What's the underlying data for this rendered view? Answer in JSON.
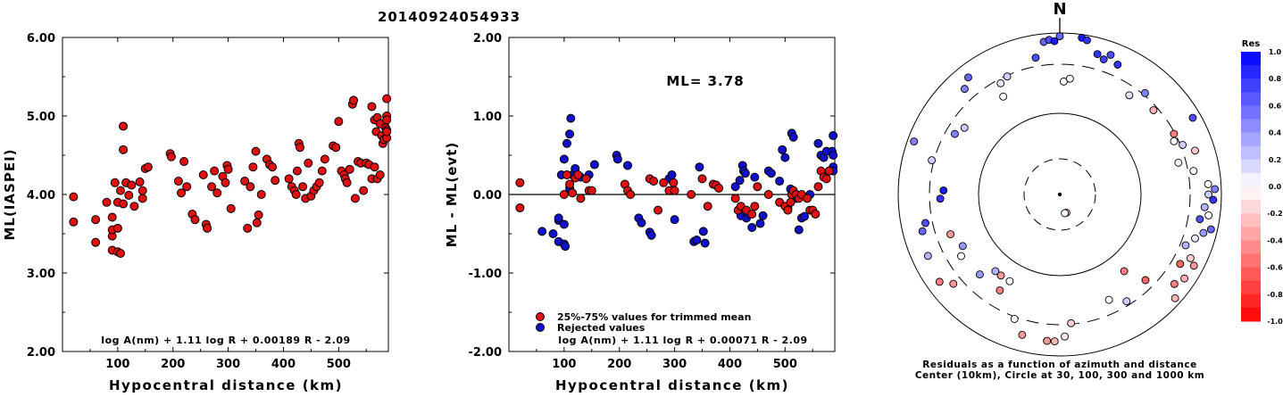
{
  "title": "20140924054933",
  "chart_data": [
    {
      "type": "scatter",
      "xlabel": "Hypocentral distance (km)",
      "ylabel": "ML(IASPEI)",
      "xlim": [
        0,
        590
      ],
      "ylim": [
        2.0,
        6.0
      ],
      "xticks": [
        "100",
        "200",
        "300",
        "400",
        "500"
      ],
      "yticks": [
        "2.00",
        "3.00",
        "4.00",
        "5.00",
        "6.00"
      ],
      "formula": "log A(nm) + 1.11 log R + 0.00189 R - 2.09",
      "color": "#dd1111",
      "points": [
        [
          20,
          3.97
        ],
        [
          20,
          3.65
        ],
        [
          60,
          3.68
        ],
        [
          60,
          3.39
        ],
        [
          80,
          3.9
        ],
        [
          90,
          3.47
        ],
        [
          90,
          3.55
        ],
        [
          90,
          3.29
        ],
        [
          90,
          3.71
        ],
        [
          95,
          4.15
        ],
        [
          100,
          3.9
        ],
        [
          100,
          3.57
        ],
        [
          100,
          3.27
        ],
        [
          105,
          3.25
        ],
        [
          105,
          4.05
        ],
        [
          110,
          3.88
        ],
        [
          110,
          4.57
        ],
        [
          110,
          4.87
        ],
        [
          115,
          4.15
        ],
        [
          120,
          3.99
        ],
        [
          125,
          4.12
        ],
        [
          130,
          3.85
        ],
        [
          140,
          4.16
        ],
        [
          145,
          3.95
        ],
        [
          145,
          4.05
        ],
        [
          150,
          4.33
        ],
        [
          155,
          4.35
        ],
        [
          195,
          4.52
        ],
        [
          197,
          4.48
        ],
        [
          210,
          4.17
        ],
        [
          215,
          4.02
        ],
        [
          220,
          4.42
        ],
        [
          225,
          4.1
        ],
        [
          235,
          3.75
        ],
        [
          240,
          3.68
        ],
        [
          255,
          4.25
        ],
        [
          260,
          3.62
        ],
        [
          262,
          3.57
        ],
        [
          270,
          4.1
        ],
        [
          275,
          4.3
        ],
        [
          280,
          4.02
        ],
        [
          290,
          4.23
        ],
        [
          295,
          4.15
        ],
        [
          298,
          4.37
        ],
        [
          300,
          4.32
        ],
        [
          305,
          3.82
        ],
        [
          330,
          4.17
        ],
        [
          335,
          3.57
        ],
        [
          340,
          4.1
        ],
        [
          345,
          4.35
        ],
        [
          350,
          4.55
        ],
        [
          352,
          3.64
        ],
        [
          355,
          3.74
        ],
        [
          360,
          4.0
        ],
        [
          370,
          4.45
        ],
        [
          375,
          4.38
        ],
        [
          380,
          4.35
        ],
        [
          385,
          4.18
        ],
        [
          410,
          4.2
        ],
        [
          415,
          4.1
        ],
        [
          420,
          4.05
        ],
        [
          423,
          4.0
        ],
        [
          425,
          4.3
        ],
        [
          428,
          4.65
        ],
        [
          430,
          4.6
        ],
        [
          435,
          4.1
        ],
        [
          440,
          3.95
        ],
        [
          445,
          4.4
        ],
        [
          450,
          3.98
        ],
        [
          455,
          4.05
        ],
        [
          460,
          4.1
        ],
        [
          465,
          4.15
        ],
        [
          470,
          4.3
        ],
        [
          475,
          4.45
        ],
        [
          490,
          4.62
        ],
        [
          495,
          4.6
        ],
        [
          500,
          4.93
        ],
        [
          505,
          4.3
        ],
        [
          510,
          4.25
        ],
        [
          512,
          4.2
        ],
        [
          515,
          4.15
        ],
        [
          520,
          4.32
        ],
        [
          525,
          5.15
        ],
        [
          527,
          5.2
        ],
        [
          530,
          3.95
        ],
        [
          535,
          4.42
        ],
        [
          540,
          4.4
        ],
        [
          545,
          4.05
        ],
        [
          550,
          4.4
        ],
        [
          555,
          4.38
        ],
        [
          560,
          4.2
        ],
        [
          565,
          4.35
        ],
        [
          570,
          4.2
        ],
        [
          575,
          4.25
        ],
        [
          560,
          5.12
        ],
        [
          565,
          4.95
        ],
        [
          568,
          4.8
        ],
        [
          570,
          4.98
        ],
        [
          575,
          4.9
        ],
        [
          578,
          4.75
        ],
        [
          580,
          4.65
        ],
        [
          582,
          4.7
        ],
        [
          585,
          4.85
        ],
        [
          587,
          5.0
        ],
        [
          590,
          4.82
        ],
        [
          592,
          4.72
        ],
        [
          595,
          5.22
        ],
        [
          598,
          4.95
        ],
        [
          600,
          4.8
        ]
      ]
    },
    {
      "type": "scatter",
      "xlabel": "Hypocentral distance (km)",
      "ylabel": "ML - ML(evt)",
      "xlim": [
        0,
        590
      ],
      "ylim": [
        -2.0,
        2.0
      ],
      "xticks": [
        "100",
        "200",
        "300",
        "400",
        "500"
      ],
      "yticks": [
        "-2.00",
        "-1.00",
        "0.00",
        "1.00",
        "2.00"
      ],
      "annotation": "ML= 3.78",
      "formula": "log A(nm) + 1.11 log R + 0.00071 R - 2.09",
      "legend": [
        {
          "label": "25%-75% values for trimmed mean",
          "color": "#dd1111"
        },
        {
          "label": "Rejected values",
          "color": "#1111cc"
        }
      ],
      "trimmed_points": [
        [
          20,
          0.15
        ],
        [
          20,
          -0.17
        ],
        [
          100,
          0.0
        ],
        [
          105,
          0.25
        ],
        [
          110,
          0.13
        ],
        [
          115,
          0.02
        ],
        [
          120,
          0.21
        ],
        [
          125,
          0.25
        ],
        [
          130,
          -0.05
        ],
        [
          140,
          0.2
        ],
        [
          145,
          0.05
        ],
        [
          150,
          0.05
        ],
        [
          210,
          0.13
        ],
        [
          215,
          0.05
        ],
        [
          220,
          0.0
        ],
        [
          255,
          0.2
        ],
        [
          262,
          0.17
        ],
        [
          270,
          -0.2
        ],
        [
          280,
          0.15
        ],
        [
          290,
          0.05
        ],
        [
          298,
          0.15
        ],
        [
          300,
          0.05
        ],
        [
          330,
          0.0
        ],
        [
          350,
          0.2
        ],
        [
          360,
          -0.15
        ],
        [
          370,
          0.13
        ],
        [
          375,
          0.12
        ],
        [
          380,
          0.08
        ],
        [
          410,
          -0.05
        ],
        [
          415,
          -0.2
        ],
        [
          420,
          -0.15
        ],
        [
          430,
          -0.2
        ],
        [
          440,
          -0.25
        ],
        [
          445,
          -0.15
        ],
        [
          450,
          0.1
        ],
        [
          470,
          0.0
        ],
        [
          490,
          -0.1
        ],
        [
          500,
          -0.15
        ],
        [
          505,
          -0.2
        ],
        [
          510,
          -0.1
        ],
        [
          512,
          0.0
        ],
        [
          515,
          0.05
        ],
        [
          520,
          0.0
        ],
        [
          525,
          -0.05
        ],
        [
          530,
          0.0
        ],
        [
          540,
          -0.05
        ],
        [
          545,
          -0.2
        ],
        [
          550,
          -0.2
        ],
        [
          555,
          -0.25
        ],
        [
          560,
          0.1
        ],
        [
          565,
          0.3
        ],
        [
          570,
          0.22
        ],
        [
          575,
          0.2
        ],
        [
          580,
          0.3
        ]
      ],
      "rejected_points": [
        [
          60,
          -0.47
        ],
        [
          80,
          -0.5
        ],
        [
          90,
          -0.33
        ],
        [
          90,
          -0.3
        ],
        [
          90,
          -0.6
        ],
        [
          95,
          0.25
        ],
        [
          100,
          -0.63
        ],
        [
          100,
          -0.38
        ],
        [
          100,
          0.45
        ],
        [
          102,
          -0.66
        ],
        [
          105,
          0.65
        ],
        [
          110,
          0.08
        ],
        [
          110,
          0.77
        ],
        [
          112,
          0.97
        ],
        [
          115,
          0.25
        ],
        [
          120,
          0.33
        ],
        [
          130,
          0.22
        ],
        [
          145,
          0.25
        ],
        [
          155,
          0.38
        ],
        [
          195,
          0.5
        ],
        [
          197,
          0.45
        ],
        [
          215,
          0.37
        ],
        [
          235,
          -0.3
        ],
        [
          240,
          -0.36
        ],
        [
          255,
          -0.48
        ],
        [
          258,
          -0.52
        ],
        [
          290,
          0.2
        ],
        [
          295,
          0.25
        ],
        [
          300,
          -0.32
        ],
        [
          335,
          -0.6
        ],
        [
          340,
          -0.58
        ],
        [
          345,
          0.35
        ],
        [
          352,
          -0.47
        ],
        [
          355,
          -0.62
        ],
        [
          410,
          0.1
        ],
        [
          418,
          0.18
        ],
        [
          420,
          -0.27
        ],
        [
          423,
          0.37
        ],
        [
          425,
          0.3
        ],
        [
          428,
          0.27
        ],
        [
          430,
          -0.3
        ],
        [
          435,
          -0.25
        ],
        [
          440,
          -0.42
        ],
        [
          445,
          0.22
        ],
        [
          455,
          -0.37
        ],
        [
          460,
          -0.27
        ],
        [
          470,
          0.3
        ],
        [
          475,
          0.27
        ],
        [
          490,
          0.17
        ],
        [
          495,
          0.57
        ],
        [
          500,
          0.47
        ],
        [
          505,
          -0.18
        ],
        [
          510,
          0.07
        ],
        [
          512,
          0.78
        ],
        [
          515,
          0.73
        ],
        [
          520,
          -0.05
        ],
        [
          525,
          -0.45
        ],
        [
          530,
          -0.3
        ],
        [
          535,
          -0.28
        ],
        [
          545,
          0.0
        ],
        [
          560,
          0.65
        ],
        [
          565,
          0.5
        ],
        [
          570,
          0.47
        ],
        [
          575,
          0.55
        ],
        [
          580,
          0.3
        ],
        [
          585,
          0.55
        ],
        [
          590,
          0.35
        ],
        [
          595,
          0.75
        ],
        [
          598,
          0.3
        ],
        [
          600,
          0.5
        ]
      ]
    },
    {
      "type": "polar-scatter",
      "north_label": "N",
      "caption_line1": "Residuals as a function of azimuth and distance",
      "caption_line2": "Center (10km), Circle at 30, 100, 300 and 1000 km",
      "colorbar": {
        "title": "Res",
        "labels": [
          "1.0",
          "0.8",
          "0.6",
          "0.4",
          "0.2",
          "0.0",
          "-0.2",
          "-0.4",
          "-0.6",
          "-0.8",
          "-1.0"
        ]
      },
      "stations": [
        [
          15,
          0.9,
          0.8
        ],
        [
          18,
          0.88,
          0.75
        ],
        [
          20,
          0.92,
          0.7
        ],
        [
          24,
          0.88,
          0.8
        ],
        [
          35,
          0.75,
          0.1
        ],
        [
          40,
          0.82,
          0.5
        ],
        [
          48,
          0.78,
          -0.3
        ],
        [
          60,
          0.95,
          0.7
        ],
        [
          62,
          0.8,
          -0.5
        ],
        [
          65,
          0.78,
          0.0
        ],
        [
          68,
          0.82,
          0.2
        ],
        [
          72,
          0.88,
          -0.2
        ],
        [
          75,
          0.76,
          0.0
        ],
        [
          80,
          0.84,
          0.0
        ],
        [
          86,
          0.92,
          0.0
        ],
        [
          88,
          0.96,
          0.5
        ],
        [
          90,
          0.92,
          0.2
        ],
        [
          92,
          0.95,
          0.8
        ],
        [
          95,
          0.9,
          0.3
        ],
        [
          98,
          0.93,
          0.0
        ],
        [
          100,
          0.88,
          0.7
        ],
        [
          103,
          0.96,
          0.6
        ],
        [
          105,
          0.92,
          0.4
        ],
        [
          108,
          0.88,
          0.1
        ],
        [
          112,
          0.84,
          0.3
        ],
        [
          116,
          0.9,
          -0.2
        ],
        [
          118,
          0.94,
          -0.4
        ],
        [
          120,
          0.86,
          -0.6
        ],
        [
          124,
          0.93,
          -0.3
        ],
        [
          128,
          0.9,
          -0.5
        ],
        [
          132,
          0.96,
          -0.3
        ],
        [
          135,
          0.75,
          -0.6
        ],
        [
          140,
          0.62,
          -0.5
        ],
        [
          148,
          0.78,
          0.2
        ],
        [
          155,
          0.72,
          0.0
        ],
        [
          160,
          0.12,
          -0.2
        ],
        [
          165,
          0.12,
          0.0
        ],
        [
          175,
          0.8,
          -0.2
        ],
        [
          178,
          0.88,
          -0.1
        ],
        [
          182,
          0.91,
          -0.3
        ],
        [
          185,
          0.91,
          -0.4
        ],
        [
          195,
          0.9,
          -0.4
        ],
        [
          200,
          0.82,
          0.0
        ],
        [
          210,
          0.62,
          0.0
        ],
        [
          212,
          0.7,
          -0.5
        ],
        [
          216,
          0.62,
          -0.4
        ],
        [
          220,
          0.62,
          0.3
        ],
        [
          225,
          0.7,
          0.4
        ],
        [
          230,
          0.86,
          -0.4
        ],
        [
          234,
          0.92,
          -0.5
        ],
        [
          238,
          0.72,
          0.0
        ],
        [
          242,
          0.68,
          0.4
        ],
        [
          245,
          0.9,
          0.3
        ],
        [
          250,
          0.72,
          -0.4
        ],
        [
          255,
          0.88,
          0.6
        ],
        [
          258,
          0.85,
          0.7
        ],
        [
          268,
          0.74,
          0.8
        ],
        [
          272,
          0.72,
          0.9
        ],
        [
          285,
          0.82,
          0.2
        ],
        [
          290,
          0.96,
          0.5
        ],
        [
          300,
          0.75,
          0.5
        ],
        [
          305,
          0.72,
          0.2
        ],
        [
          318,
          0.88,
          0.5
        ],
        [
          322,
          0.92,
          0.6
        ],
        [
          330,
          0.7,
          0.0
        ],
        [
          332,
          0.78,
          0.1
        ],
        [
          336,
          0.8,
          0.2
        ],
        [
          350,
          0.86,
          0.7
        ],
        [
          354,
          0.95,
          0.6
        ],
        [
          356,
          0.96,
          0.7
        ],
        [
          358,
          0.95,
          0.9
        ],
        [
          0,
          0.98,
          0.6
        ],
        [
          2,
          0.7,
          0.0
        ],
        [
          5,
          0.72,
          0.0
        ],
        [
          8,
          0.98,
          0.9
        ],
        [
          10,
          0.97,
          0.8
        ]
      ]
    }
  ]
}
